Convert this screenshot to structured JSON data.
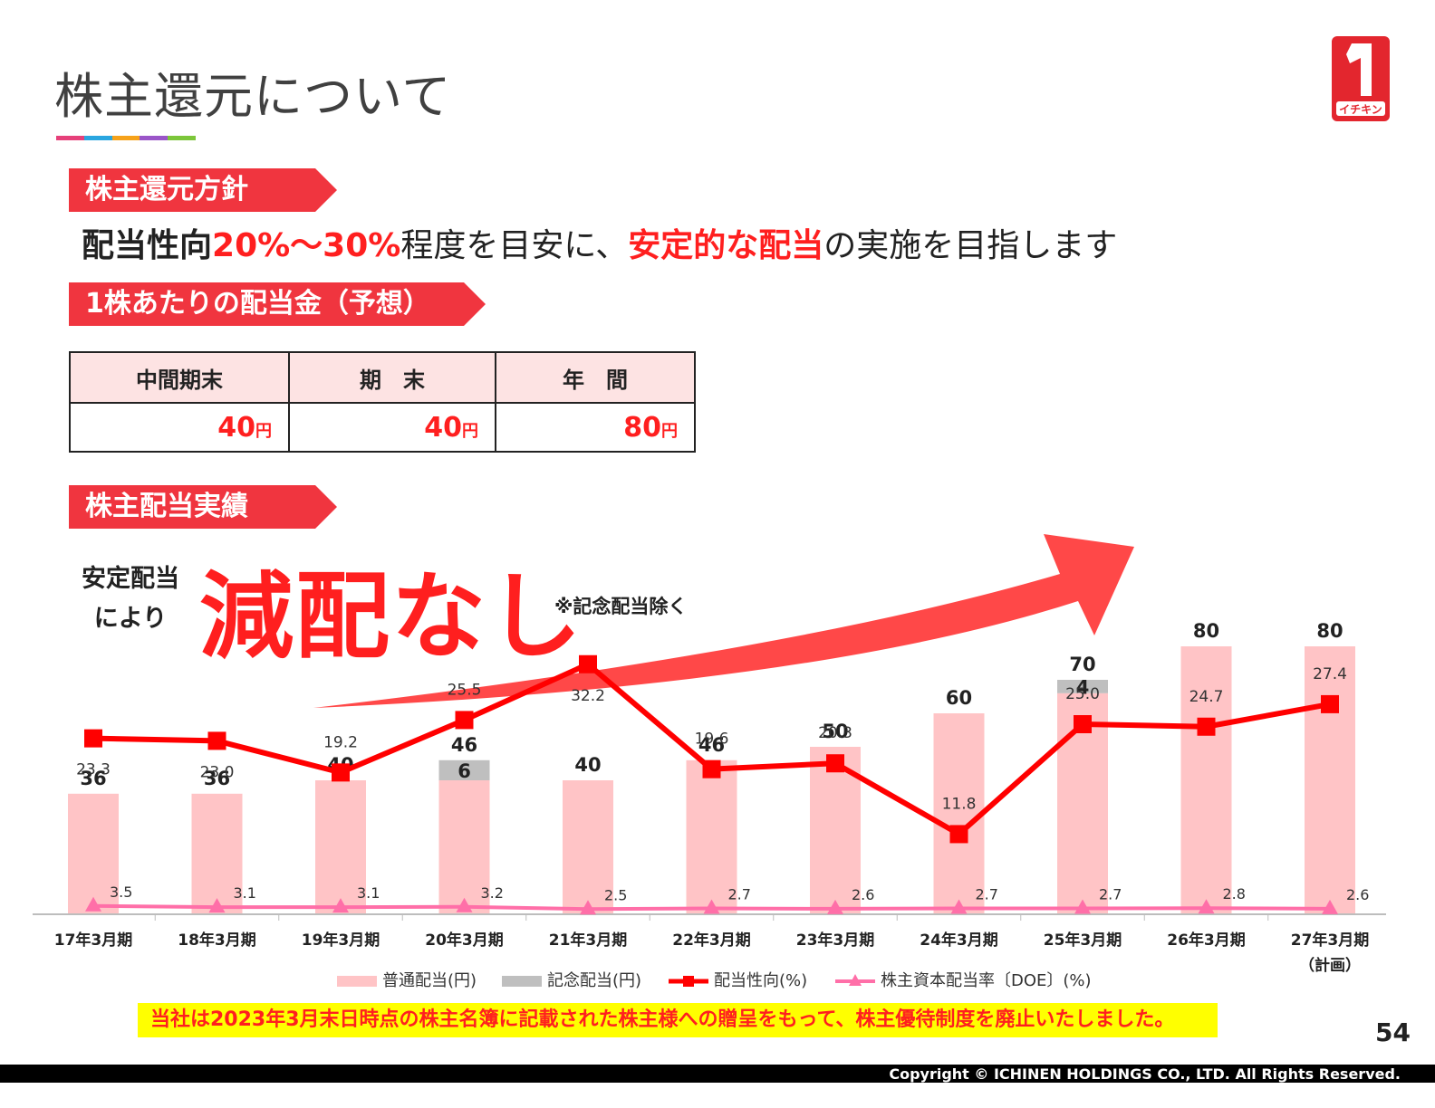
{
  "page": {
    "title": "株主還元について",
    "title_bar_colors": [
      "#e6407a",
      "#2aa6e0",
      "#f6a21a",
      "#9a55c8",
      "#7cc63a"
    ],
    "page_number": "54",
    "copyright": "Copyright © ICHINEN HOLDINGS CO., LTD.  All Rights Reserved.",
    "logo": {
      "icon": "ichinen-logo-icon",
      "text": "イチキン",
      "color": "#e3262e"
    }
  },
  "policy": {
    "tag": "株主還元方針",
    "part1": "配当性向",
    "part2": "20%～30%",
    "part3": "程度を目安に、",
    "part4": "安定的な配当",
    "part5": "の実施を目指します"
  },
  "dividend_forecast": {
    "tag": "1株あたりの配当金（予想）",
    "headers": [
      "中間期末",
      "期　末",
      "年　間"
    ],
    "values": [
      "40",
      "40",
      "80"
    ],
    "unit": "円"
  },
  "record": {
    "tag": "株主配当実績",
    "stable_line1": "安定配当",
    "stable_line2": "により",
    "headline": "減配なし",
    "note": "※記念配当除く"
  },
  "notice": "当社は2023年3月末日時点の株主名簿に記載された株主様への贈呈をもって、株主優待制度を廃止いたしました。",
  "colors": {
    "accent_red": "#ff1f1f",
    "tag_red": "#f0353f",
    "bar_pink": "#ffc4c6",
    "memorial_gray": "#bfbfbf",
    "payout_line": "#ff0000",
    "doe_line": "#ff6fa8",
    "trend_arrow": "#ff4848"
  },
  "chart_data": {
    "type": "bar",
    "categories": [
      "17年3月期",
      "18年3月期",
      "19年3月期",
      "20年3月期",
      "21年3月期",
      "22年3月期",
      "23年3月期",
      "24年3月期",
      "25年3月期",
      "26年3月期",
      "27年3月期"
    ],
    "category_sublabels": [
      "",
      "",
      "",
      "",
      "",
      "",
      "",
      "",
      "",
      "",
      "（計画）"
    ],
    "series": [
      {
        "name": "普通配当(円)",
        "type": "bar",
        "values": [
          36,
          36,
          40,
          40,
          40,
          46,
          50,
          60,
          66,
          80,
          80
        ]
      },
      {
        "name": "記念配当(円)",
        "type": "bar-stacked",
        "values": [
          0,
          0,
          0,
          6,
          0,
          0,
          0,
          0,
          4,
          0,
          0
        ]
      },
      {
        "name": "配当性向(%)",
        "type": "line",
        "values": [
          23.3,
          23.0,
          19.2,
          25.5,
          32.2,
          19.6,
          20.3,
          11.8,
          25.0,
          24.7,
          27.4
        ]
      },
      {
        "name": "株主資本配当率〔DOE〕(%)",
        "type": "line",
        "values": [
          3.5,
          3.1,
          3.1,
          3.2,
          2.5,
          2.7,
          2.6,
          2.7,
          2.7,
          2.8,
          2.6
        ]
      }
    ],
    "totals": [
      36,
      36,
      40,
      46,
      40,
      46,
      50,
      60,
      70,
      80,
      80
    ],
    "memorial_labels": [
      "",
      "",
      "",
      "6",
      "",
      "",
      "",
      "",
      "4",
      "",
      ""
    ],
    "legend_position": "bottom",
    "grid": false
  }
}
